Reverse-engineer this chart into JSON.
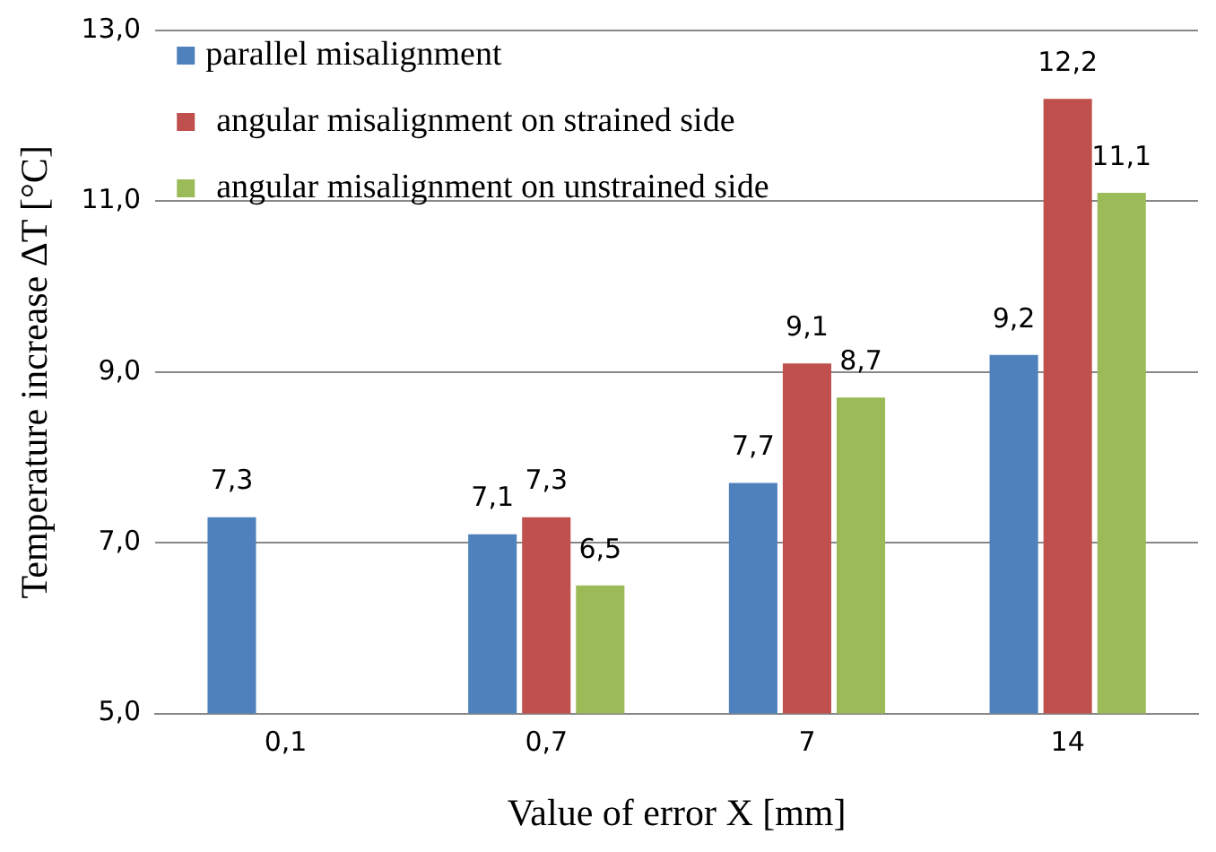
{
  "chart_data": {
    "type": "bar",
    "xlabel": "Value of error X [mm]",
    "ylabel": "Temperature increase ΔT [°C]",
    "categories": [
      "0,1",
      "0,7",
      "7",
      "14"
    ],
    "series": [
      {
        "name": "parallel misalignment",
        "color": "#4f81bd",
        "values": [
          7.3,
          7.1,
          7.7,
          9.2
        ],
        "value_labels": [
          "7,3",
          "7,1",
          "7,7",
          "9,2"
        ]
      },
      {
        "name": "angular misalignment on strained side",
        "color": "#c0504d",
        "values": [
          null,
          7.3,
          9.1,
          12.2
        ],
        "value_labels": [
          null,
          "7,3",
          "9,1",
          "12,2"
        ]
      },
      {
        "name": "angular misalignment on unstrained side",
        "color": "#9bbb59",
        "values": [
          null,
          6.5,
          8.7,
          11.1
        ],
        "value_labels": [
          null,
          "6,5",
          "8,7",
          "11,1"
        ]
      }
    ],
    "ylim": [
      5,
      13
    ],
    "yticks": [
      {
        "value": 5,
        "label": "5,0"
      },
      {
        "value": 7,
        "label": "7,0"
      },
      {
        "value": 9,
        "label": "9,0"
      },
      {
        "value": 11,
        "label": "11,0"
      },
      {
        "value": 13,
        "label": "13,0"
      }
    ],
    "grid": "y",
    "legend": "top left"
  }
}
